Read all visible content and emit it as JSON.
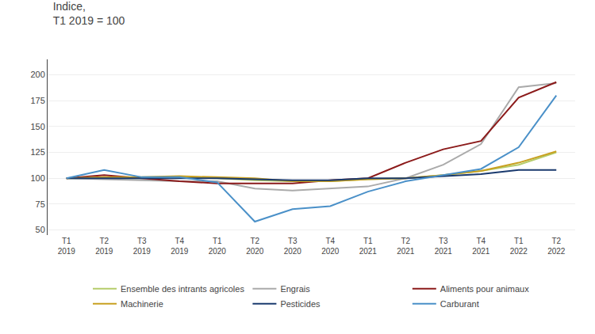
{
  "chart_data": {
    "type": "line",
    "title": "Indice,",
    "subtitle": "T1 2019 = 100",
    "categories": [
      "T1\n2019",
      "T2\n2019",
      "T3\n2019",
      "T4\n2019",
      "T1\n2020",
      "T2\n2020",
      "T3\n2020",
      "T4\n2020",
      "T1\n2021",
      "T2\n2021",
      "T3\n2021",
      "T4\n2021",
      "T1\n2022",
      "T2\n2022"
    ],
    "series": [
      {
        "name": "Ensemble des intrants agricoles",
        "color": "#b5cc6a",
        "values": [
          100,
          100,
          100,
          101,
          100,
          98,
          97,
          97,
          99,
          100,
          103,
          107,
          113,
          125
        ]
      },
      {
        "name": "Engrais",
        "color": "#aaaaaa",
        "values": [
          100,
          99,
          98,
          97,
          97,
          90,
          88,
          90,
          92,
          100,
          113,
          133,
          188,
          192
        ]
      },
      {
        "name": "Aliments pour animaux",
        "color": "#8b1a1a",
        "values": [
          100,
          103,
          100,
          97,
          95,
          95,
          95,
          98,
          100,
          115,
          128,
          136,
          178,
          193
        ]
      },
      {
        "name": "Machinerie",
        "color": "#c8a020",
        "values": [
          100,
          101,
          101,
          102,
          101,
          100,
          97,
          97,
          99,
          100,
          103,
          107,
          115,
          126
        ]
      },
      {
        "name": "Pesticides",
        "color": "#1a3a6e",
        "values": [
          100,
          100,
          100,
          100,
          100,
          99,
          98,
          98,
          100,
          100,
          102,
          104,
          108,
          108
        ]
      },
      {
        "name": "Carburant",
        "color": "#4a90c8",
        "values": [
          100,
          108,
          101,
          101,
          96,
          58,
          70,
          73,
          87,
          97,
          103,
          109,
          130,
          180
        ]
      }
    ],
    "ylim": [
      45,
      215
    ],
    "yticks": [
      50,
      75,
      100,
      125,
      150,
      175,
      200
    ],
    "grid": true,
    "legend": "bottom"
  }
}
